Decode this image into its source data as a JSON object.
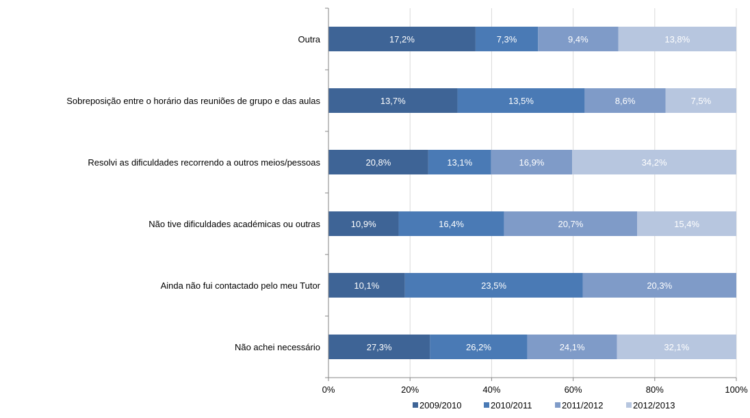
{
  "chart_data": {
    "type": "bar",
    "orientation": "horizontal",
    "stacked": "percent",
    "categories": [
      "Outra",
      "Sobreposição entre o horário das reuniões de grupo e das aulas",
      "Resolvi as dificuldades recorrendo a outros meios/pessoas",
      "Não tive dificuldades académicas ou outras",
      "Ainda não fui contactado pelo meu Tutor",
      "Não achei necessário"
    ],
    "series": [
      {
        "name": "2009/2010",
        "color": "#3e6496",
        "values": [
          17.2,
          13.7,
          20.8,
          10.9,
          10.1,
          27.3
        ],
        "labels": [
          "17,2%",
          "13,7%",
          "20,8%",
          "10,9%",
          "10,1%",
          "27,3%"
        ]
      },
      {
        "name": "2010/2011",
        "color": "#4a7ab5",
        "values": [
          7.3,
          13.5,
          13.1,
          16.4,
          23.5,
          26.2
        ],
        "labels": [
          "7,3%",
          "13,5%",
          "13,1%",
          "16,4%",
          "23,5%",
          "26,2%"
        ]
      },
      {
        "name": "2011/2012",
        "color": "#7f9bc8",
        "values": [
          9.4,
          8.6,
          16.9,
          20.7,
          20.3,
          24.1
        ],
        "labels": [
          "9,4%",
          "8,6%",
          "16,9%",
          "20,7%",
          "20,3%",
          "24,1%"
        ]
      },
      {
        "name": "2012/2013",
        "color": "#b7c6df",
        "values": [
          13.8,
          7.5,
          34.2,
          15.4,
          0,
          32.1
        ],
        "labels": [
          "13,8%",
          "7,5%",
          "34,2%",
          "15,4%",
          "",
          "32,1%"
        ]
      }
    ],
    "xticks": [
      "0%",
      "20%",
      "40%",
      "60%",
      "80%",
      "100%"
    ],
    "xlim": [
      0,
      100
    ],
    "grid": "vertical",
    "legend": "bottom",
    "title": "",
    "xlabel": "",
    "ylabel": ""
  }
}
